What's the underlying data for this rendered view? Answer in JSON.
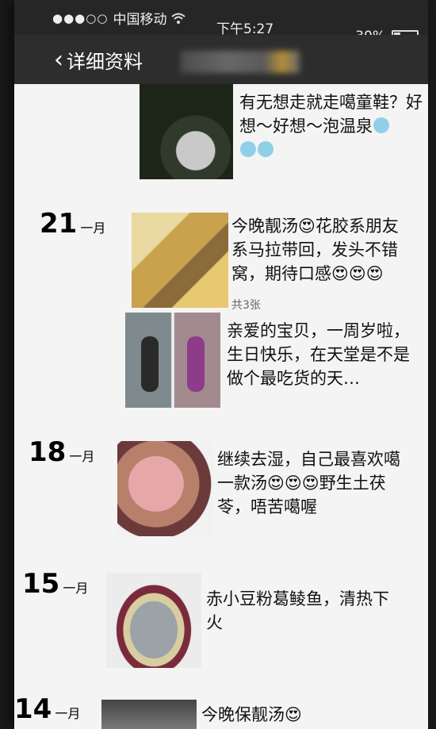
{
  "status_bar": {
    "signal": "●●●○○",
    "carrier": "中国移动",
    "time": "下午5:27",
    "battery": "30%",
    "battery_fraction": 0.3
  },
  "nav": {
    "back_label": "详细资料"
  },
  "entries": [
    {
      "text_before": "有无想走就走噶童鞋？好想～好想～泡温泉",
      "emoji_trail": "😢😢😢"
    },
    {
      "day": "21",
      "month": "一月",
      "text": "今晚靓汤😍花胶系朋友系马拉带回，发头不错窝，期待口感😍😍😍",
      "count": "共3张"
    },
    {
      "text": "亲爱的宝贝，一周岁啦，生日快乐，在天堂是不是做个最吃货的天…"
    },
    {
      "day": "18",
      "month": "一月",
      "text": "继续去湿，自己最喜欢噶一款汤😍😍😍野生土茯苓，唔苦噶喔"
    },
    {
      "day": "15",
      "month": "一月",
      "text": "赤小豆粉葛鲮鱼，清热下火"
    },
    {
      "day": "14",
      "month": "一月",
      "text": "今晚保靓汤😍"
    }
  ],
  "icons": {
    "wifi": "wifi-icon",
    "back": "chevron-left-icon",
    "battery": "battery-icon"
  }
}
